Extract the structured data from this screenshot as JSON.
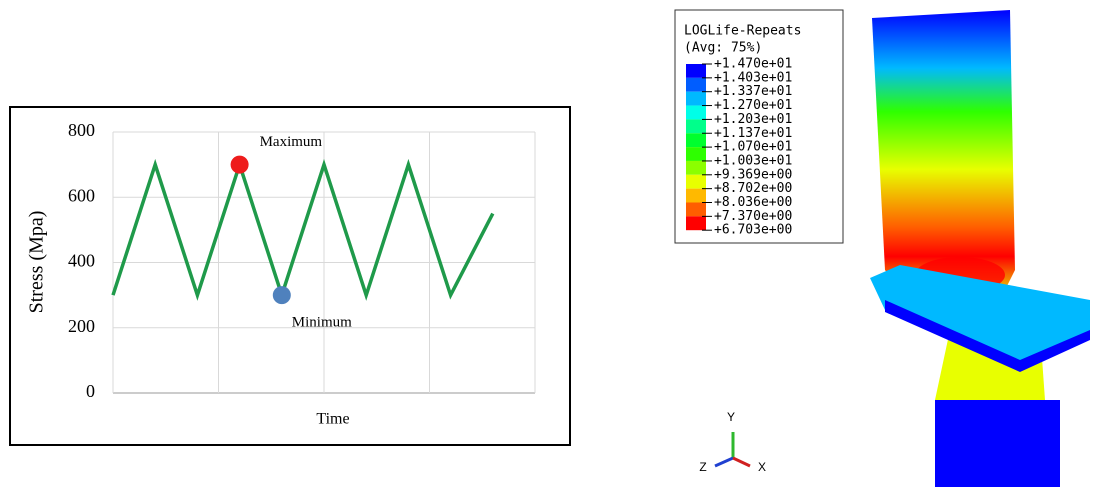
{
  "chart_data": {
    "type": "line",
    "y_label": "Stress (Mpa)",
    "x_label": "Time",
    "x": [
      0,
      1,
      2,
      3,
      4,
      5,
      6,
      7,
      8,
      9
    ],
    "series": [
      {
        "color": "#1f9a4a",
        "values": [
          300,
          700,
          300,
          700,
          300,
          700,
          300,
          700,
          300,
          550
        ]
      }
    ],
    "xlim": [
      0,
      10
    ],
    "x_gridlines": [
      2.5,
      5,
      7.5,
      10
    ],
    "ylim": [
      0,
      800
    ],
    "yticks": [
      0,
      200,
      400,
      600,
      800
    ],
    "grid": true,
    "markers": [
      {
        "label": "Maximum",
        "x": 3,
        "y": 700,
        "color": "#ee1c1c"
      },
      {
        "label": "Minimum",
        "x": 4,
        "y": 300,
        "color": "#4f81bd"
      }
    ]
  },
  "contour_legend": {
    "title": "LOGLife-Repeats",
    "subtitle": "(Avg: 75%)",
    "levels": [
      {
        "value": 14.7,
        "label": "+1.470e+01"
      },
      {
        "value": 14.03,
        "label": "+1.403e+01"
      },
      {
        "value": 13.37,
        "label": "+1.337e+01"
      },
      {
        "value": 12.7,
        "label": "+1.270e+01"
      },
      {
        "value": 12.03,
        "label": "+1.203e+01"
      },
      {
        "value": 11.37,
        "label": "+1.137e+01"
      },
      {
        "value": 10.7,
        "label": "+1.070e+01"
      },
      {
        "value": 10.03,
        "label": "+1.003e+01"
      },
      {
        "value": 9.369,
        "label": "+9.369e+00"
      },
      {
        "value": 8.702,
        "label": "+8.702e+00"
      },
      {
        "value": 8.036,
        "label": "+8.036e+00"
      },
      {
        "value": 7.37,
        "label": "+7.370e+00"
      },
      {
        "value": 6.703,
        "label": "+6.703e+00"
      }
    ],
    "colors": [
      "#0000ff",
      "#005dff",
      "#00b9ff",
      "#00ffe8",
      "#00ff8b",
      "#00ff2e",
      "#2eff00",
      "#8bff00",
      "#e8ff00",
      "#ffb900",
      "#ff5d00",
      "#ff0000"
    ]
  },
  "triad": {
    "y": "Y",
    "z": "Z",
    "x": "X"
  }
}
